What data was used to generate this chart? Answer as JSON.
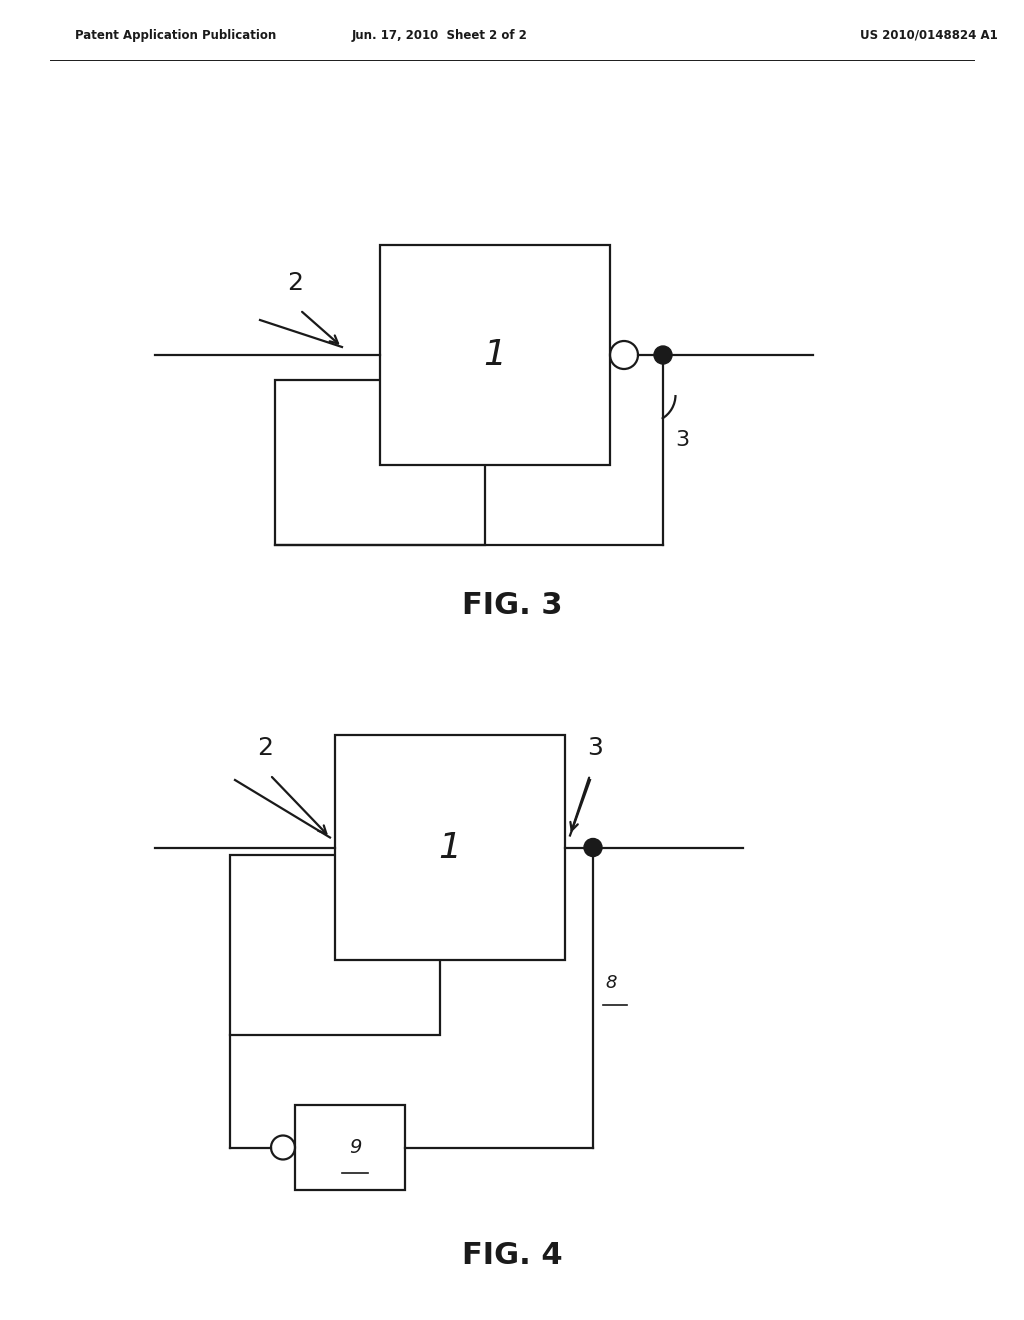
{
  "bg_color": "#ffffff",
  "line_color": "#1a1a1a",
  "header_left": "Patent Application Publication",
  "header_center": "Jun. 17, 2010  Sheet 2 of 2",
  "header_right": "US 2010/0148824 A1",
  "fig3_label": "FIG. 3",
  "fig4_label": "FIG. 4"
}
